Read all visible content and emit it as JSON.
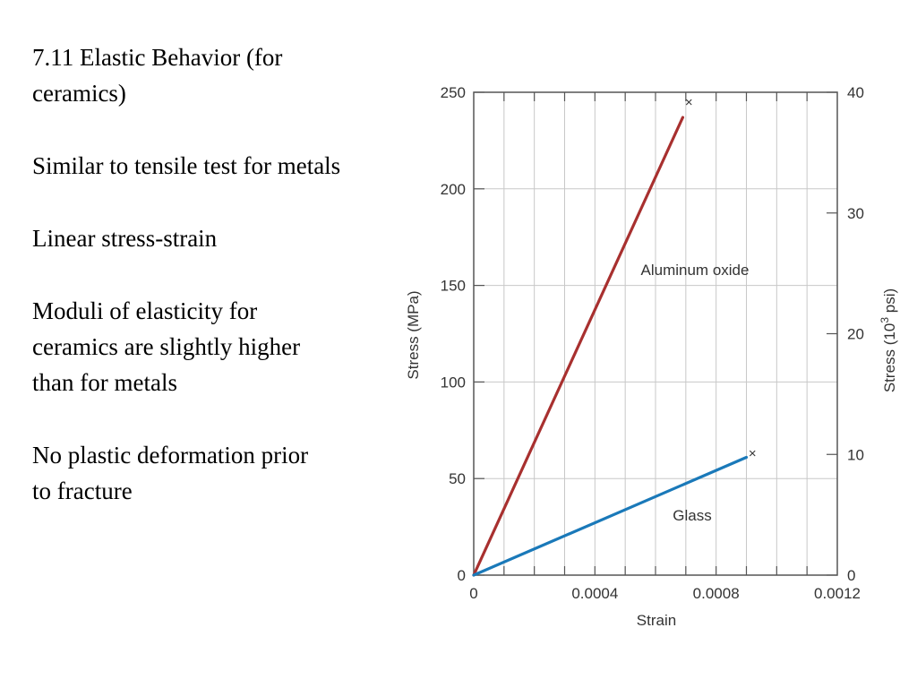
{
  "slide": {
    "title_line1": "7.11 Elastic Behavior (for",
    "title_line2": "ceramics)",
    "point1": "Similar to tensile test for metals",
    "point2": "Linear stress-strain",
    "point3_line1": "Moduli of elasticity for",
    "point3_line2": "ceramics are slightly higher",
    "point3_line3": "than for metals",
    "point4_line1": "No plastic deformation prior",
    "point4_line2": "to fracture"
  },
  "chart_data": {
    "type": "line",
    "xlabel": "Strain",
    "ylabel": "Stress (MPa)",
    "y2label_prefix": "Stress (10",
    "y2label_sup": "3",
    "y2label_suffix": " psi)",
    "xlim": [
      0,
      0.0012
    ],
    "ylim": [
      0,
      250
    ],
    "y2lim": [
      0,
      40
    ],
    "xticks": [
      {
        "value": 0,
        "label": "0"
      },
      {
        "value": 0.0004,
        "label": "0.0004"
      },
      {
        "value": 0.0008,
        "label": "0.0008"
      },
      {
        "value": 0.0012,
        "label": "0.0012"
      }
    ],
    "yticks": [
      {
        "value": 0,
        "label": "0"
      },
      {
        "value": 50,
        "label": "50"
      },
      {
        "value": 100,
        "label": "100"
      },
      {
        "value": 150,
        "label": "150"
      },
      {
        "value": 200,
        "label": "200"
      },
      {
        "value": 250,
        "label": "250"
      }
    ],
    "y2ticks": [
      {
        "value": 0,
        "label": "0"
      },
      {
        "value": 10,
        "label": "10"
      },
      {
        "value": 20,
        "label": "20"
      },
      {
        "value": 30,
        "label": "30"
      },
      {
        "value": 40,
        "label": "40"
      }
    ],
    "grid": true,
    "fracture_marker": "×",
    "series": [
      {
        "name": "Aluminum oxide",
        "color": "#a8302f",
        "x": [
          0,
          0.00069
        ],
        "y": [
          0,
          237
        ],
        "fracture": [
          0.00071,
          245
        ]
      },
      {
        "name": "Glass",
        "color": "#1a79b9",
        "x": [
          0,
          0.0009
        ],
        "y": [
          0,
          61
        ],
        "fracture": [
          0.00092,
          63
        ]
      }
    ]
  }
}
